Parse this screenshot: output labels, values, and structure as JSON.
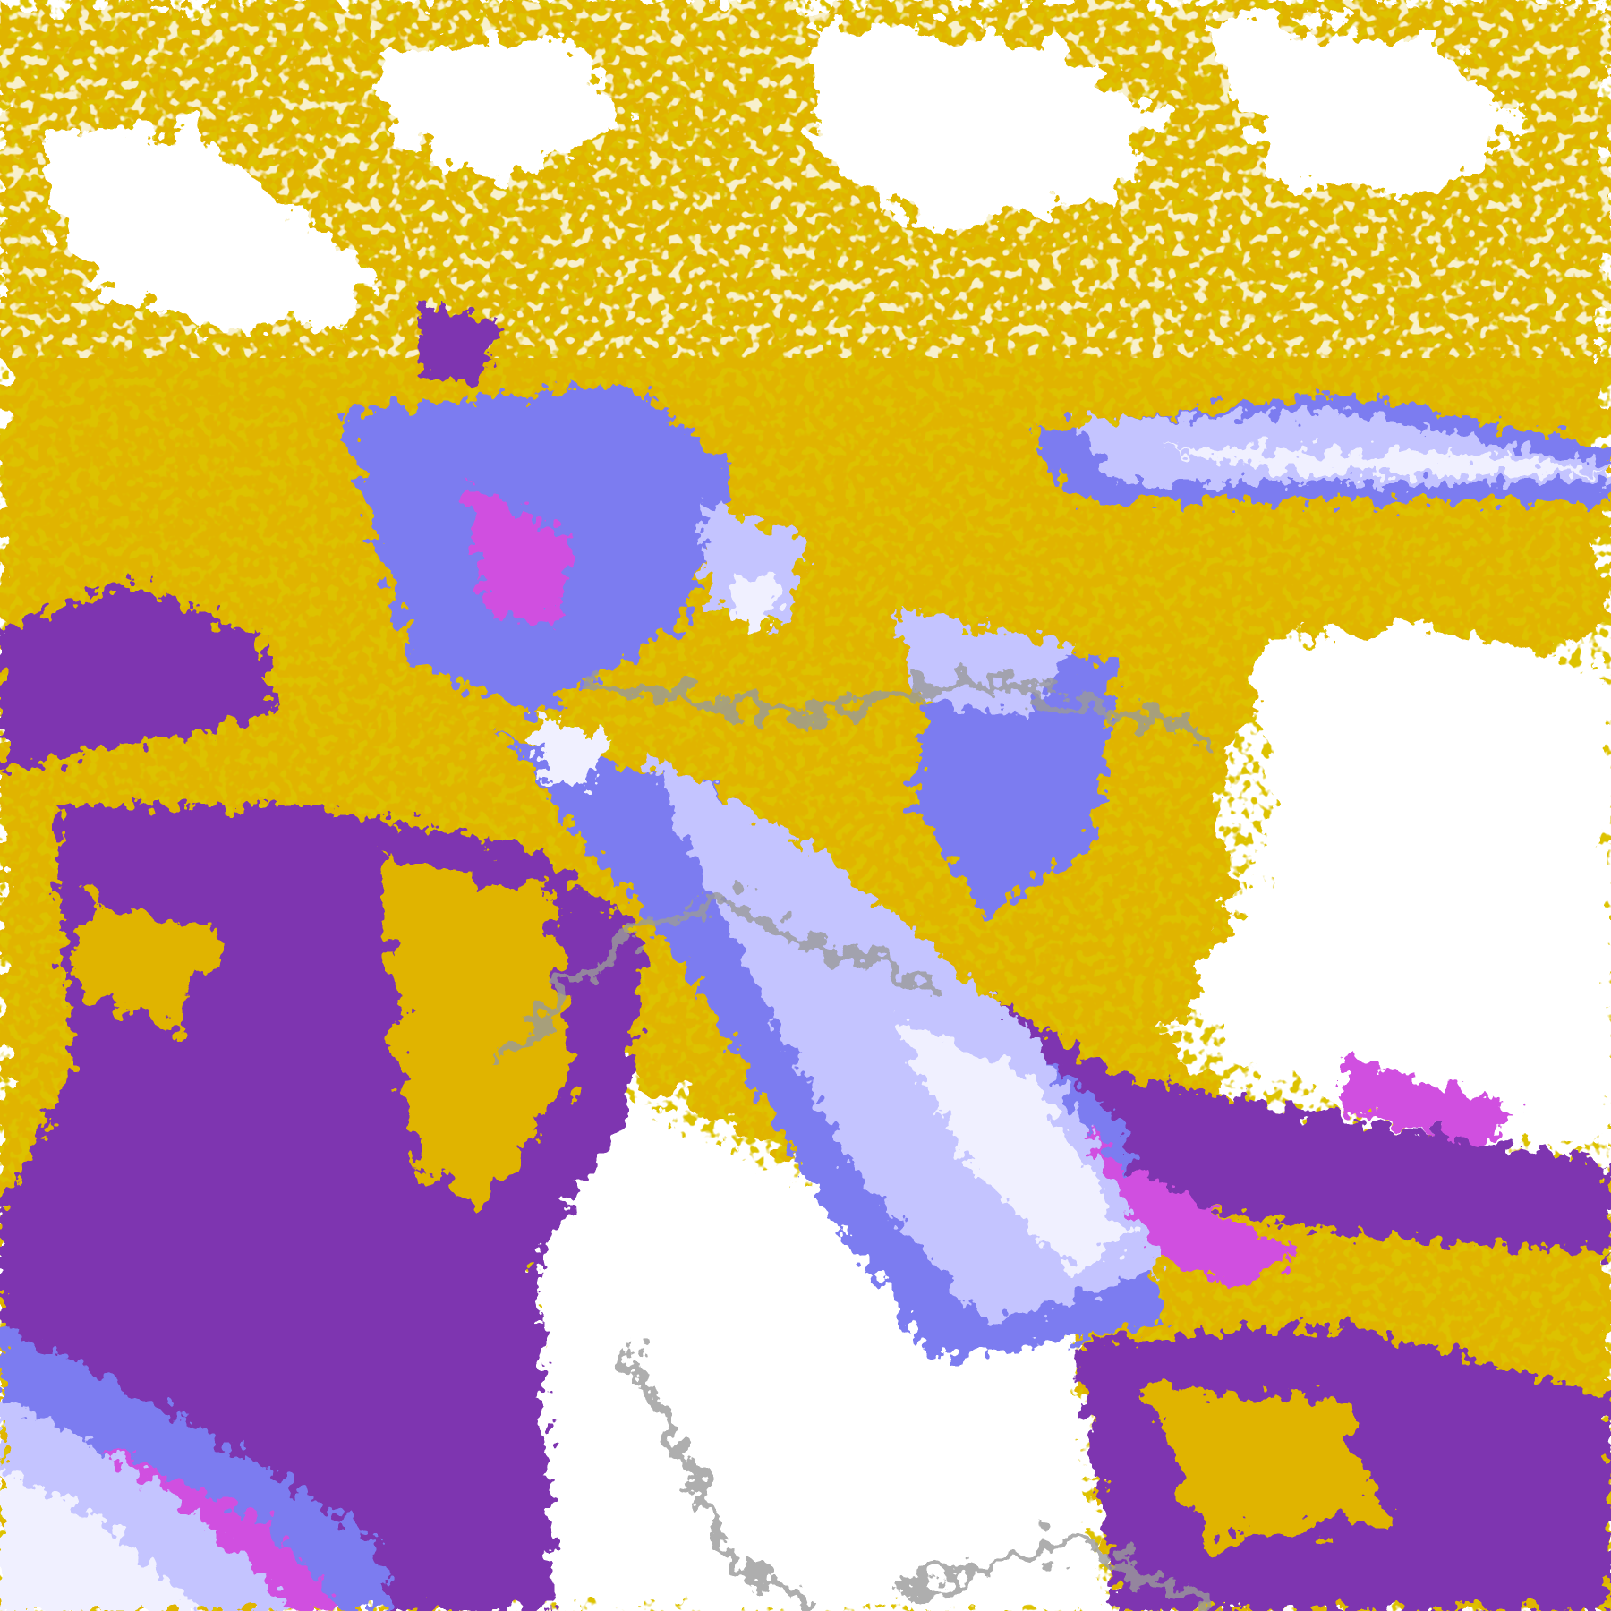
{
  "map": {
    "type": "classified satellite imagery",
    "palette": {
      "clear": "#ffffff",
      "gold": "#e0b400",
      "dark_gold": "#b88a00",
      "purple": "#7e35b0",
      "magenta": "#d050e0",
      "periwinkle": "#7c7cf0",
      "lavender": "#c4c4ff",
      "pale": "#f0f0ff",
      "gray": "#9a9a9a"
    }
  }
}
